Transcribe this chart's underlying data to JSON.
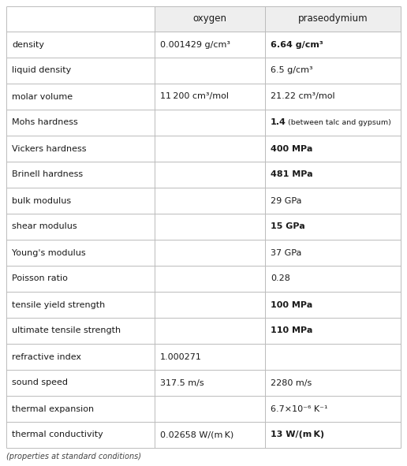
{
  "col_headers": [
    "",
    "oxygen",
    "praseodymium"
  ],
  "rows": [
    {
      "property": "density",
      "oxygen": "0.001429 g/cm³",
      "praseodymium": "6.64 g/cm³",
      "pr_bold": true
    },
    {
      "property": "liquid density",
      "oxygen": "",
      "praseodymium": "6.5 g/cm³",
      "pr_bold": false
    },
    {
      "property": "molar volume",
      "oxygen": "11 200 cm³/mol",
      "praseodymium": "21.22 cm³/mol",
      "pr_bold": false
    },
    {
      "property": "Mohs hardness",
      "oxygen": "",
      "praseodymium_main": "1.4",
      "praseodymium_sub": "  (between talc and gypsum)",
      "pr_bold": true
    },
    {
      "property": "Vickers hardness",
      "oxygen": "",
      "praseodymium": "400 MPa",
      "pr_bold": true
    },
    {
      "property": "Brinell hardness",
      "oxygen": "",
      "praseodymium": "481 MPa",
      "pr_bold": true
    },
    {
      "property": "bulk modulus",
      "oxygen": "",
      "praseodymium": "29 GPa",
      "pr_bold": false
    },
    {
      "property": "shear modulus",
      "oxygen": "",
      "praseodymium": "15 GPa",
      "pr_bold": true
    },
    {
      "property": "Young's modulus",
      "oxygen": "",
      "praseodymium": "37 GPa",
      "pr_bold": false
    },
    {
      "property": "Poisson ratio",
      "oxygen": "",
      "praseodymium": "0.28",
      "pr_bold": false
    },
    {
      "property": "tensile yield strength",
      "oxygen": "",
      "praseodymium": "100 MPa",
      "pr_bold": true
    },
    {
      "property": "ultimate tensile strength",
      "oxygen": "",
      "praseodymium": "110 MPa",
      "pr_bold": true
    },
    {
      "property": "refractive index",
      "oxygen": "1.000271",
      "praseodymium": "",
      "pr_bold": false
    },
    {
      "property": "sound speed",
      "oxygen": "317.5 m/s",
      "praseodymium": "2280 m/s",
      "pr_bold": false
    },
    {
      "property": "thermal expansion",
      "oxygen": "",
      "praseodymium": "6.7×10⁻⁶ K⁻¹",
      "pr_bold": false
    },
    {
      "property": "thermal conductivity",
      "oxygen": "0.02658 W/(m K)",
      "praseodymium": "13 W/(m K)",
      "pr_bold": true
    }
  ],
  "footer": "(properties at standard conditions)",
  "bg_color": "#ffffff",
  "line_color": "#bbbbbb",
  "text_color": "#1a1a1a",
  "header_bg": "#eeeeee"
}
